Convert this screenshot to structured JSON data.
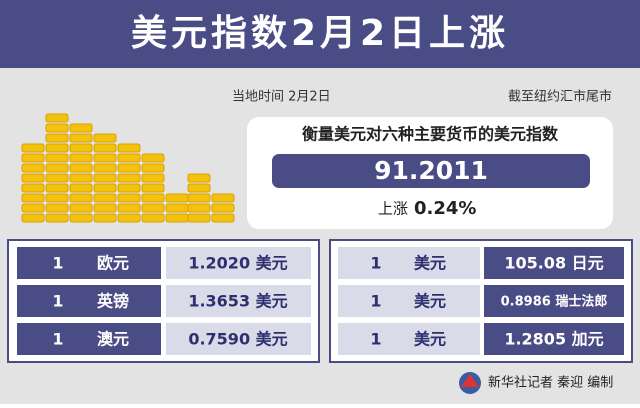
{
  "header": {
    "title": "美元指数2月2日上涨"
  },
  "info": {
    "time": "当地时间 2月2日",
    "close": "截至纽约汇市尾市"
  },
  "index": {
    "label": "衡量美元对六种主要货币的美元指数",
    "value": "91.2011",
    "change_label": "上涨",
    "change": "0.24%"
  },
  "left_table": {
    "rows": [
      [
        "1",
        "欧元",
        "1.2020 美元"
      ],
      [
        "1",
        "英镑",
        "1.3653 美元"
      ],
      [
        "1",
        "澳元",
        "0.7590 美元"
      ]
    ]
  },
  "right_table": {
    "rows": [
      [
        "1",
        "美元",
        "105.08 日元"
      ],
      [
        "1",
        "美元",
        "0.8986 瑞士法郎"
      ],
      [
        "1",
        "美元",
        "1.2805 加元"
      ]
    ]
  },
  "credit": "新华社记者 秦迎 编制"
}
